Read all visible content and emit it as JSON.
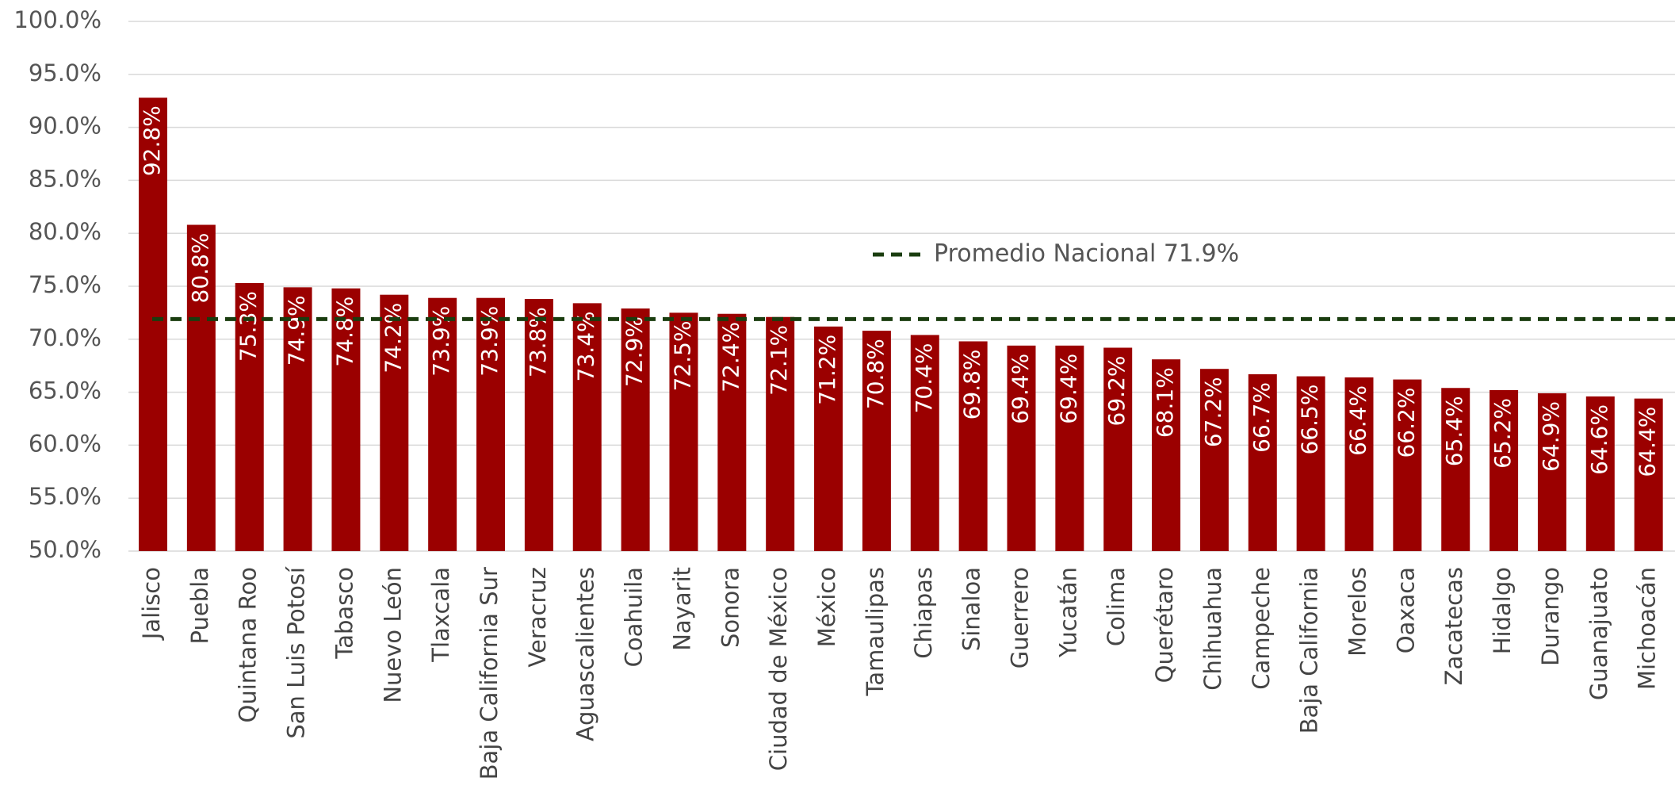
{
  "chart_data": {
    "type": "bar",
    "categories": [
      "Jalisco",
      "Puebla",
      "Quintana Roo",
      "San Luis Potosí",
      "Tabasco",
      "Nuevo León",
      "Tlaxcala",
      "Baja California Sur",
      "Veracruz",
      "Aguascalientes",
      "Coahuila",
      "Nayarit",
      "Sonora",
      "Ciudad de México",
      "México",
      "Tamaulipas",
      "Chiapas",
      "Sinaloa",
      "Guerrero",
      "Yucatán",
      "Colima",
      "Querétaro",
      "Chihuahua",
      "Campeche",
      "Baja California",
      "Morelos",
      "Oaxaca",
      "Zacatecas",
      "Hidalgo",
      "Durango",
      "Guanajuato",
      "Michoacán"
    ],
    "values": [
      92.8,
      80.8,
      75.3,
      74.9,
      74.8,
      74.2,
      73.9,
      73.9,
      73.8,
      73.4,
      72.9,
      72.5,
      72.4,
      72.1,
      71.2,
      70.8,
      70.4,
      69.8,
      69.4,
      69.4,
      69.2,
      68.1,
      67.2,
      66.7,
      66.5,
      66.4,
      66.2,
      65.4,
      65.2,
      64.9,
      64.6,
      64.4
    ],
    "value_labels": [
      "92.8%",
      "80.8%",
      "75.3%",
      "74.9%",
      "74.8%",
      "74.2%",
      "73.9%",
      "73.9%",
      "73.8%",
      "73.4%",
      "72.9%",
      "72.5%",
      "72.4%",
      "72.1%",
      "71.2%",
      "70.8%",
      "70.4%",
      "69.8%",
      "69.4%",
      "69.4%",
      "69.2%",
      "68.1%",
      "67.2%",
      "66.7%",
      "66.5%",
      "66.4%",
      "66.2%",
      "65.4%",
      "65.2%",
      "64.9%",
      "64.6%",
      "64.4%"
    ],
    "color": "#9b0000",
    "ylim": [
      50,
      100
    ],
    "yticks": [
      {
        "value": 50,
        "label": "50.0%"
      },
      {
        "value": 55,
        "label": "55.0%"
      },
      {
        "value": 60,
        "label": "60.0%"
      },
      {
        "value": 65,
        "label": "65.0%"
      },
      {
        "value": 70,
        "label": "70.0%"
      },
      {
        "value": 75,
        "label": "75.0%"
      },
      {
        "value": 80,
        "label": "80.0%"
      },
      {
        "value": 85,
        "label": "85.0%"
      },
      {
        "value": 90,
        "label": "90.0%"
      },
      {
        "value": 95,
        "label": "95.0%"
      },
      {
        "value": 100,
        "label": "100.0%"
      }
    ],
    "grid": true,
    "average": {
      "value": 71.9,
      "label": "Promedio Nacional 71.9%",
      "color": "#1a3d0f"
    }
  }
}
